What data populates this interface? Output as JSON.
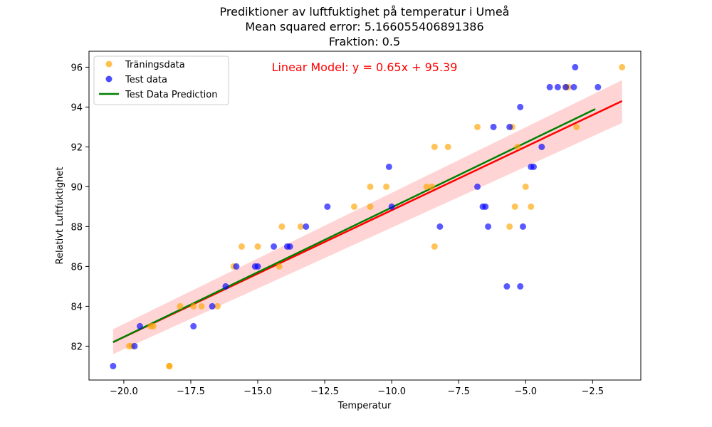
{
  "chart_data": {
    "type": "scatter",
    "title_lines": [
      "Prediktioner av luftfuktighet på temperatur i Umeå",
      "Mean squared error: 5.166055406891386",
      "Fraktion: 0.5"
    ],
    "xlabel": "Temperatur",
    "ylabel": "Relativt Luftfuktighet",
    "xlim": [
      -21.3,
      -0.7
    ],
    "ylim": [
      80.3,
      96.8
    ],
    "xticks": [
      -20.0,
      -17.5,
      -15.0,
      -12.5,
      -10.0,
      -7.5,
      -5.0,
      -2.5
    ],
    "xtick_labels": [
      "−20.0",
      "−17.5",
      "−15.0",
      "−12.5",
      "−10.0",
      "−7.5",
      "−5.0",
      "−2.5"
    ],
    "yticks": [
      82,
      84,
      86,
      88,
      90,
      92,
      94,
      96
    ],
    "ytick_labels": [
      "82",
      "84",
      "86",
      "88",
      "90",
      "92",
      "94",
      "96"
    ],
    "grid": false,
    "legend_position": "top-left",
    "annotation": {
      "text": "Linear Model: y = 0.65x + 95.39",
      "color": "#ff0000"
    },
    "series": [
      {
        "name": "Träningsdata",
        "kind": "scatter",
        "color": "#ffa500",
        "points": [
          [
            -19.8,
            82
          ],
          [
            -19.7,
            82
          ],
          [
            -18.9,
            83
          ],
          [
            -19.0,
            83
          ],
          [
            -18.3,
            81
          ],
          [
            -18.3,
            81
          ],
          [
            -17.9,
            84
          ],
          [
            -17.4,
            84
          ],
          [
            -17.1,
            84
          ],
          [
            -16.5,
            84
          ],
          [
            -15.9,
            86
          ],
          [
            -15.6,
            87
          ],
          [
            -15.0,
            87
          ],
          [
            -14.2,
            86
          ],
          [
            -14.1,
            88
          ],
          [
            -13.4,
            88
          ],
          [
            -11.4,
            89
          ],
          [
            -10.8,
            90
          ],
          [
            -10.8,
            89
          ],
          [
            -10.2,
            90
          ],
          [
            -8.7,
            90
          ],
          [
            -8.5,
            90
          ],
          [
            -8.4,
            92
          ],
          [
            -8.4,
            87
          ],
          [
            -7.9,
            92
          ],
          [
            -6.8,
            93
          ],
          [
            -5.5,
            93
          ],
          [
            -5.6,
            88
          ],
          [
            -5.4,
            89
          ],
          [
            -5.3,
            92
          ],
          [
            -5.0,
            90
          ],
          [
            -4.8,
            89
          ],
          [
            -3.5,
            95
          ],
          [
            -3.4,
            95
          ],
          [
            -3.1,
            93
          ],
          [
            -1.4,
            96
          ]
        ]
      },
      {
        "name": "Test data",
        "kind": "scatter",
        "color": "#0000ff",
        "points": [
          [
            -20.4,
            81
          ],
          [
            -19.6,
            82
          ],
          [
            -19.4,
            83
          ],
          [
            -17.4,
            83
          ],
          [
            -16.7,
            84
          ],
          [
            -16.2,
            85
          ],
          [
            -15.8,
            86
          ],
          [
            -15.1,
            86
          ],
          [
            -15.0,
            86
          ],
          [
            -14.4,
            87
          ],
          [
            -13.9,
            87
          ],
          [
            -13.8,
            87
          ],
          [
            -13.2,
            88
          ],
          [
            -12.4,
            89
          ],
          [
            -10.1,
            91
          ],
          [
            -10.0,
            89
          ],
          [
            -8.2,
            88
          ],
          [
            -6.8,
            90
          ],
          [
            -6.6,
            89
          ],
          [
            -6.5,
            89
          ],
          [
            -6.4,
            88
          ],
          [
            -6.2,
            93
          ],
          [
            -5.6,
            93
          ],
          [
            -5.7,
            85
          ],
          [
            -5.2,
            94
          ],
          [
            -5.2,
            85
          ],
          [
            -5.1,
            88
          ],
          [
            -4.8,
            91
          ],
          [
            -4.7,
            91
          ],
          [
            -4.4,
            92
          ],
          [
            -4.1,
            95
          ],
          [
            -3.8,
            95
          ],
          [
            -3.5,
            95
          ],
          [
            -3.2,
            95
          ],
          [
            -3.15,
            96
          ],
          [
            -2.3,
            95
          ]
        ]
      },
      {
        "name": "Test Data Prediction",
        "kind": "line",
        "color": "#008000",
        "points": [
          [
            -20.4,
            82.2
          ],
          [
            -2.4,
            93.9
          ]
        ]
      }
    ],
    "regression": {
      "color": "#ff0000",
      "points": [
        [
          -20.4,
          82.2
        ],
        [
          -1.4,
          94.3
        ]
      ],
      "ci_color": "#ffb0b0",
      "ci_upper": [
        [
          -20.4,
          82.85
        ],
        [
          -1.4,
          95.35
        ]
      ],
      "ci_lower": [
        [
          -20.4,
          81.6
        ],
        [
          -1.4,
          93.2
        ]
      ]
    }
  }
}
